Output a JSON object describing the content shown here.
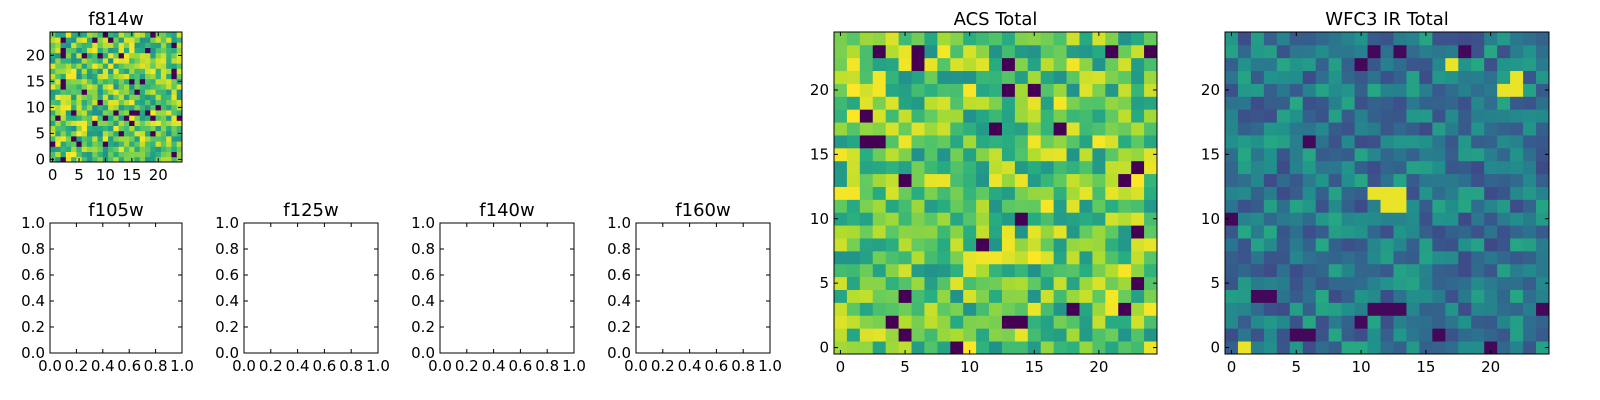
{
  "chart_data": [
    {
      "type": "heatmap",
      "title": "f814w",
      "xlabel": "",
      "ylabel": "",
      "xlim": [
        -0.5,
        24.5
      ],
      "ylim": [
        -0.5,
        24.5
      ],
      "xticks": [
        0,
        5,
        10,
        15,
        20
      ],
      "yticks": [
        0,
        5,
        10,
        15,
        20
      ],
      "colormap": "viridis",
      "grid_size": [
        25,
        25
      ],
      "seed": 814,
      "value_range": [
        0,
        1
      ],
      "note_values": "pixel values are noise-like; drawn procedurally"
    },
    {
      "type": "scatter",
      "title": "f105w",
      "xlabel": "",
      "ylabel": "",
      "xlim": [
        0,
        1
      ],
      "ylim": [
        0,
        1
      ],
      "xticks": [
        "0.0",
        "0.2",
        "0.4",
        "0.6",
        "0.8",
        "1.0"
      ],
      "yticks": [
        "0.0",
        "0.2",
        "0.4",
        "0.6",
        "0.8",
        "1.0"
      ],
      "series": []
    },
    {
      "type": "scatter",
      "title": "f125w",
      "xlabel": "",
      "ylabel": "",
      "xlim": [
        0,
        1
      ],
      "ylim": [
        0,
        1
      ],
      "xticks": [
        "0.0",
        "0.2",
        "0.4",
        "0.6",
        "0.8",
        "1.0"
      ],
      "yticks": [
        "0.0",
        "0.2",
        "0.4",
        "0.6",
        "0.8",
        "1.0"
      ],
      "series": []
    },
    {
      "type": "scatter",
      "title": "f140w",
      "xlabel": "",
      "ylabel": "",
      "xlim": [
        0,
        1
      ],
      "ylim": [
        0,
        1
      ],
      "xticks": [
        "0.0",
        "0.2",
        "0.4",
        "0.6",
        "0.8",
        "1.0"
      ],
      "yticks": [
        "0.0",
        "0.2",
        "0.4",
        "0.6",
        "0.8",
        "1.0"
      ],
      "series": []
    },
    {
      "type": "scatter",
      "title": "f160w",
      "xlabel": "",
      "ylabel": "",
      "xlim": [
        0,
        1
      ],
      "ylim": [
        0,
        1
      ],
      "xticks": [
        "0.0",
        "0.2",
        "0.4",
        "0.6",
        "0.8",
        "1.0"
      ],
      "yticks": [
        "0.0",
        "0.2",
        "0.4",
        "0.6",
        "0.8",
        "1.0"
      ],
      "series": []
    },
    {
      "type": "heatmap",
      "title": "ACS Total",
      "xlabel": "",
      "ylabel": "",
      "xlim": [
        -0.5,
        24.5
      ],
      "ylim": [
        -0.5,
        24.5
      ],
      "xticks": [
        0,
        5,
        10,
        15,
        20
      ],
      "yticks": [
        0,
        5,
        10,
        15,
        20
      ],
      "colormap": "viridis",
      "grid_size": [
        25,
        25
      ],
      "seed": 2024,
      "value_range": [
        0,
        1
      ]
    },
    {
      "type": "heatmap",
      "title": "WFC3 IR Total",
      "xlabel": "",
      "ylabel": "",
      "xlim": [
        -0.5,
        24.5
      ],
      "ylim": [
        -0.5,
        24.5
      ],
      "xticks": [
        0,
        5,
        10,
        15,
        20
      ],
      "yticks": [
        0,
        5,
        10,
        15,
        20
      ],
      "colormap": "viridis",
      "grid_size": [
        25,
        25
      ],
      "seed": 3160,
      "value_range": [
        0,
        1
      ],
      "bright_cells": [
        [
          11,
          12
        ],
        [
          12,
          12
        ],
        [
          13,
          12
        ],
        [
          12,
          11
        ],
        [
          13,
          11
        ],
        [
          21,
          20
        ],
        [
          22,
          20
        ],
        [
          22,
          21
        ],
        [
          17,
          22
        ],
        [
          1,
          0
        ]
      ],
      "dark_cells": [
        [
          11,
          23
        ],
        [
          13,
          23
        ],
        [
          18,
          23
        ],
        [
          10,
          22
        ],
        [
          0,
          10
        ],
        [
          5,
          1
        ],
        [
          6,
          1
        ],
        [
          2,
          4
        ],
        [
          3,
          4
        ],
        [
          11,
          3
        ],
        [
          12,
          3
        ],
        [
          13,
          3
        ],
        [
          6,
          16
        ],
        [
          10,
          2
        ],
        [
          20,
          0
        ],
        [
          24,
          3
        ],
        [
          16,
          1
        ]
      ]
    }
  ],
  "colors": {
    "viridis_stops": [
      "#440154",
      "#472f7d",
      "#3b528b",
      "#2c728e",
      "#21918c",
      "#28ae80",
      "#5ec962",
      "#addc30",
      "#fde725"
    ],
    "axis": "#000000",
    "background": "#ffffff"
  }
}
